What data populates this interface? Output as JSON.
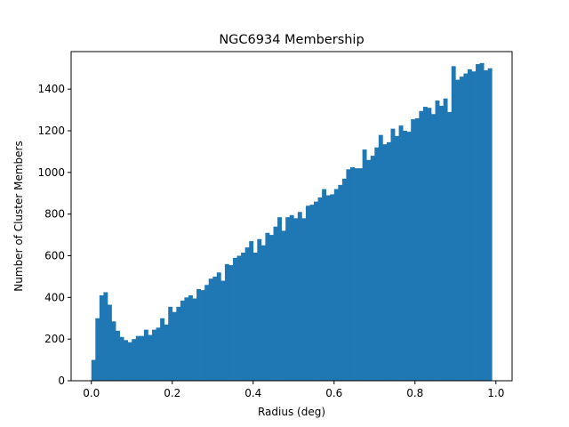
{
  "chart_data": {
    "type": "bar",
    "title": "NGC6934 Membership",
    "xlabel": "Radius (deg)",
    "ylabel": "Number of Cluster Members",
    "bin_width": 0.01,
    "xlim": [
      -0.05,
      1.04
    ],
    "ylim": [
      0,
      1580
    ],
    "x_ticks": [
      {
        "value": 0.0,
        "label": "0.0"
      },
      {
        "value": 0.2,
        "label": "0.2"
      },
      {
        "value": 0.4,
        "label": "0.4"
      },
      {
        "value": 0.6,
        "label": "0.6"
      },
      {
        "value": 0.8,
        "label": "0.8"
      },
      {
        "value": 1.0,
        "label": "1.0"
      }
    ],
    "y_ticks": [
      {
        "value": 0,
        "label": "0"
      },
      {
        "value": 200,
        "label": "200"
      },
      {
        "value": 400,
        "label": "400"
      },
      {
        "value": 600,
        "label": "600"
      },
      {
        "value": 800,
        "label": "800"
      },
      {
        "value": 1000,
        "label": "1000"
      },
      {
        "value": 1200,
        "label": "1200"
      },
      {
        "value": 1400,
        "label": "1400"
      }
    ],
    "grid": false,
    "bar_color": "#1f77b4",
    "series": [
      {
        "bin_starts": [
          0.0,
          0.01,
          0.02,
          0.03,
          0.04,
          0.05,
          0.06,
          0.07,
          0.08,
          0.09,
          0.1,
          0.11,
          0.12,
          0.13,
          0.14,
          0.15,
          0.16,
          0.17,
          0.18,
          0.19,
          0.2,
          0.21,
          0.22,
          0.23,
          0.24,
          0.25,
          0.26,
          0.27,
          0.28,
          0.29,
          0.3,
          0.31,
          0.32,
          0.33,
          0.34,
          0.35,
          0.36,
          0.37,
          0.38,
          0.39,
          0.4,
          0.41,
          0.42,
          0.43,
          0.44,
          0.45,
          0.46,
          0.47,
          0.48,
          0.49,
          0.5,
          0.51,
          0.52,
          0.53,
          0.54,
          0.55,
          0.56,
          0.57,
          0.58,
          0.59,
          0.6,
          0.61,
          0.62,
          0.63,
          0.64,
          0.65,
          0.66,
          0.67,
          0.68,
          0.69,
          0.7,
          0.71,
          0.72,
          0.73,
          0.74,
          0.75,
          0.76,
          0.77,
          0.78,
          0.79,
          0.8,
          0.81,
          0.82,
          0.83,
          0.84,
          0.85,
          0.86,
          0.87,
          0.88,
          0.89,
          0.9,
          0.91,
          0.92,
          0.93,
          0.94,
          0.95,
          0.96,
          0.97,
          0.98
        ],
        "values": [
          100,
          300,
          410,
          425,
          365,
          285,
          240,
          210,
          195,
          185,
          200,
          215,
          215,
          245,
          220,
          245,
          255,
          300,
          270,
          355,
          330,
          355,
          385,
          400,
          410,
          395,
          440,
          435,
          460,
          490,
          500,
          520,
          480,
          560,
          555,
          590,
          600,
          615,
          640,
          670,
          615,
          680,
          650,
          710,
          700,
          740,
          785,
          720,
          785,
          795,
          780,
          810,
          780,
          840,
          845,
          860,
          880,
          920,
          890,
          895,
          920,
          940,
          970,
          1015,
          1025,
          1020,
          1020,
          1110,
          1060,
          1080,
          1120,
          1180,
          1135,
          1145,
          1210,
          1175,
          1225,
          1200,
          1195,
          1255,
          1260,
          1295,
          1315,
          1310,
          1280,
          1345,
          1320,
          1355,
          1290,
          1510,
          1445,
          1460,
          1475,
          1495,
          1485,
          1520,
          1525,
          1490,
          1500
        ]
      }
    ]
  }
}
